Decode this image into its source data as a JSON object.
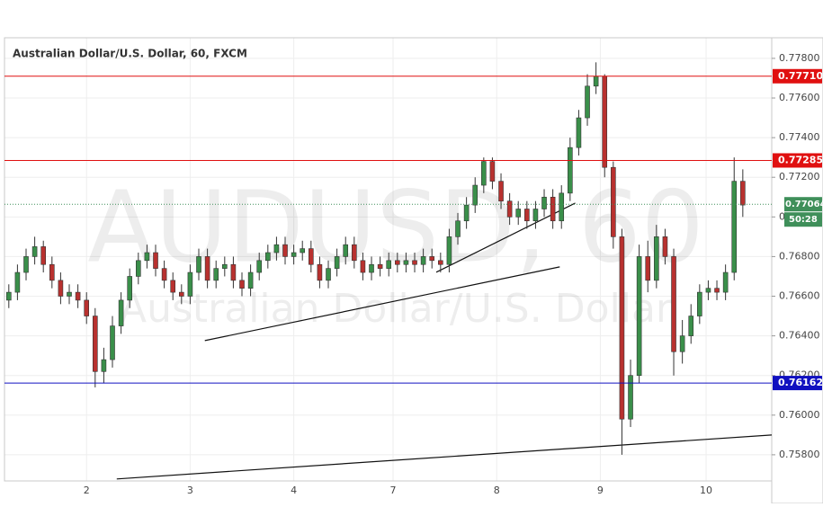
{
  "chart_data": {
    "type": "candlestick",
    "title": "Australian Dollar/U.S. Dollar, 60, FXCM",
    "watermark": "AUDUSD, 60",
    "watermark_sub": "Australian Dollar/U.S. Dollar",
    "up_color": "#3a8f4a",
    "down_color": "#b8312f",
    "grid": true,
    "xlim": [
      -0.5,
      88.35
    ],
    "xticks": [
      {
        "value": 9,
        "label": "2"
      },
      {
        "value": 21,
        "label": "3"
      },
      {
        "value": 33,
        "label": "4"
      },
      {
        "value": 44.5,
        "label": "7"
      },
      {
        "value": 56.5,
        "label": "8"
      },
      {
        "value": 68.5,
        "label": "9"
      },
      {
        "value": 80.75,
        "label": "10"
      }
    ],
    "ylim": [
      0.75668,
      0.77904
    ],
    "yticks": [
      {
        "value": 0.758,
        "label": "0.75800"
      },
      {
        "value": 0.76,
        "label": "0.76000"
      },
      {
        "value": 0.762,
        "label": "0.76200"
      },
      {
        "value": 0.764,
        "label": "0.76400"
      },
      {
        "value": 0.766,
        "label": "0.76600"
      },
      {
        "value": 0.768,
        "label": "0.76800"
      },
      {
        "value": 0.77,
        "label": "0.77000"
      },
      {
        "value": 0.772,
        "label": "0.77200"
      },
      {
        "value": 0.774,
        "label": "0.77400"
      },
      {
        "value": 0.776,
        "label": "0.77600"
      },
      {
        "value": 0.778,
        "label": "0.77800"
      }
    ],
    "open": [
      0.7658,
      0.7662,
      0.7672,
      0.768,
      0.7685,
      0.7676,
      0.7668,
      0.766,
      0.7662,
      0.7658,
      0.765,
      0.7622,
      0.7628,
      0.7645,
      0.7658,
      0.767,
      0.7678,
      0.7682,
      0.7674,
      0.7668,
      0.7662,
      0.766,
      0.7672,
      0.768,
      0.7668,
      0.7674,
      0.7676,
      0.7668,
      0.7664,
      0.7672,
      0.7678,
      0.7682,
      0.7686,
      0.768,
      0.7682,
      0.7684,
      0.7676,
      0.7668,
      0.7674,
      0.768,
      0.7686,
      0.7678,
      0.7672,
      0.7676,
      0.7674,
      0.7678,
      0.7676,
      0.7678,
      0.7676,
      0.768,
      0.7678,
      0.7676,
      0.769,
      0.7698,
      0.7706,
      0.7716,
      0.7728,
      0.7718,
      0.7708,
      0.77,
      0.7704,
      0.7698,
      0.7704,
      0.771,
      0.7698,
      0.7712,
      0.7735,
      0.775,
      0.7766,
      0.7771,
      0.7725,
      0.769,
      0.7598,
      0.762,
      0.768,
      0.7668,
      0.769,
      0.768,
      0.7632,
      0.764,
      0.765,
      0.7662,
      0.7664,
      0.7662,
      0.7672,
      0.7718
    ],
    "high": [
      0.7666,
      0.7676,
      0.7684,
      0.769,
      0.7688,
      0.768,
      0.7672,
      0.7666,
      0.7666,
      0.7662,
      0.7654,
      0.7634,
      0.765,
      0.7662,
      0.7674,
      0.7682,
      0.7686,
      0.7686,
      0.7678,
      0.7672,
      0.7666,
      0.7676,
      0.7684,
      0.7684,
      0.7678,
      0.768,
      0.768,
      0.7672,
      0.7676,
      0.7682,
      0.7686,
      0.769,
      0.769,
      0.7686,
      0.7688,
      0.7688,
      0.768,
      0.7678,
      0.7684,
      0.769,
      0.769,
      0.7682,
      0.768,
      0.768,
      0.7682,
      0.7682,
      0.7682,
      0.7682,
      0.7684,
      0.7684,
      0.7682,
      0.7694,
      0.7702,
      0.771,
      0.772,
      0.773,
      0.773,
      0.7722,
      0.7712,
      0.7708,
      0.7708,
      0.7708,
      0.7714,
      0.7714,
      0.7716,
      0.774,
      0.7754,
      0.7772,
      0.7778,
      0.7772,
      0.7728,
      0.7694,
      0.7628,
      0.7686,
      0.7688,
      0.7696,
      0.7694,
      0.7684,
      0.7648,
      0.7656,
      0.7666,
      0.7668,
      0.7668,
      0.7676,
      0.773,
      0.7724
    ],
    "low": [
      0.7654,
      0.7658,
      0.7668,
      0.7676,
      0.7672,
      0.7664,
      0.7656,
      0.7656,
      0.7654,
      0.7646,
      0.7614,
      0.7616,
      0.7624,
      0.7641,
      0.7654,
      0.7666,
      0.7674,
      0.767,
      0.7664,
      0.7658,
      0.7656,
      0.7656,
      0.7668,
      0.7664,
      0.7664,
      0.767,
      0.7664,
      0.766,
      0.766,
      0.7668,
      0.7674,
      0.7678,
      0.7676,
      0.7676,
      0.7678,
      0.7672,
      0.7664,
      0.7664,
      0.767,
      0.7676,
      0.7674,
      0.7668,
      0.7668,
      0.767,
      0.767,
      0.7672,
      0.7672,
      0.7672,
      0.7672,
      0.7674,
      0.7672,
      0.7672,
      0.7686,
      0.7694,
      0.7702,
      0.7712,
      0.7714,
      0.7704,
      0.7696,
      0.7696,
      0.7694,
      0.7694,
      0.77,
      0.7694,
      0.7694,
      0.7708,
      0.7731,
      0.7746,
      0.7762,
      0.772,
      0.7684,
      0.758,
      0.7594,
      0.7616,
      0.7662,
      0.7664,
      0.7676,
      0.762,
      0.7626,
      0.7636,
      0.7646,
      0.7658,
      0.7658,
      0.7658,
      0.7668,
      0.77
    ],
    "close": [
      0.7662,
      0.7672,
      0.768,
      0.7685,
      0.7676,
      0.7668,
      0.766,
      0.7662,
      0.7658,
      0.765,
      0.7622,
      0.7628,
      0.7645,
      0.7658,
      0.767,
      0.7678,
      0.7682,
      0.7674,
      0.7668,
      0.7662,
      0.766,
      0.7672,
      0.768,
      0.7668,
      0.7674,
      0.7676,
      0.7668,
      0.7664,
      0.7672,
      0.7678,
      0.7682,
      0.7686,
      0.768,
      0.7682,
      0.7684,
      0.7676,
      0.7668,
      0.7674,
      0.768,
      0.7686,
      0.7678,
      0.7672,
      0.7676,
      0.7674,
      0.7678,
      0.7676,
      0.7678,
      0.7676,
      0.768,
      0.7678,
      0.7676,
      0.769,
      0.7698,
      0.7706,
      0.7716,
      0.7728,
      0.7718,
      0.7708,
      0.77,
      0.7704,
      0.7698,
      0.7704,
      0.771,
      0.7698,
      0.7712,
      0.7735,
      0.775,
      0.7766,
      0.7771,
      0.7725,
      0.769,
      0.7598,
      0.762,
      0.768,
      0.7668,
      0.769,
      0.768,
      0.7632,
      0.764,
      0.765,
      0.7662,
      0.7664,
      0.7662,
      0.7672,
      0.7718,
      0.7706
    ],
    "levels": [
      {
        "value": 0.7771,
        "label": "0.77710",
        "color": "#e01010"
      },
      {
        "value": 0.77285,
        "label": "0.77285",
        "color": "#e01010"
      },
      {
        "value": 0.76162,
        "label": "0.76162",
        "color": "#1010c0"
      }
    ],
    "last_price": {
      "value": 0.77064,
      "label": "0.77064",
      "countdown": "50:28",
      "color": "#3f8f5a"
    },
    "trendlines": [
      {
        "x": [
          22.7,
          63.8
        ],
        "y": [
          0.76376,
          0.76748
        ]
      },
      {
        "x": [
          49.5,
          65.6
        ],
        "y": [
          0.76721,
          0.7707
        ]
      },
      {
        "x": [
          12.5,
          88.35
        ],
        "y": [
          0.75678,
          0.759
        ]
      }
    ]
  }
}
